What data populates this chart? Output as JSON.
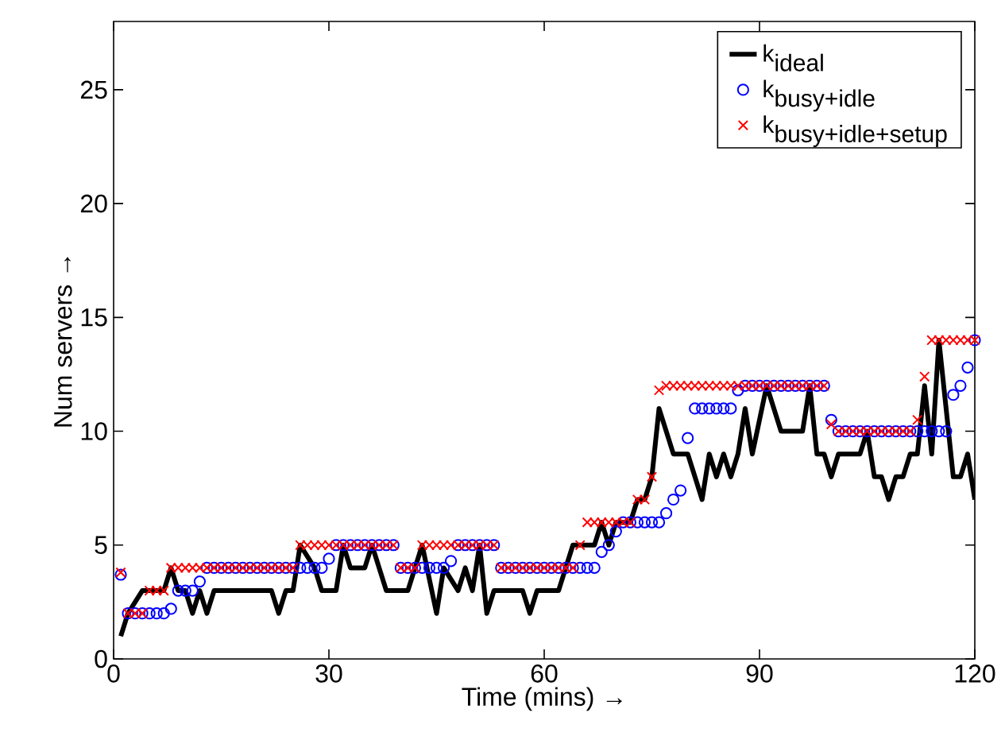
{
  "chart_data": {
    "type": "line",
    "xlabel": "Time (mins) →",
    "ylabel": "Num servers →",
    "xlim": [
      0,
      120
    ],
    "ylim": [
      0,
      28
    ],
    "xticks": [
      0,
      30,
      60,
      90,
      120
    ],
    "yticks": [
      0,
      5,
      10,
      15,
      20,
      25
    ],
    "legend": "top right",
    "grid": false,
    "x": [
      1,
      2,
      3,
      4,
      5,
      6,
      7,
      8,
      9,
      10,
      11,
      12,
      13,
      14,
      15,
      16,
      17,
      18,
      19,
      20,
      21,
      22,
      23,
      24,
      25,
      26,
      27,
      28,
      29,
      30,
      31,
      32,
      33,
      34,
      35,
      36,
      37,
      38,
      39,
      40,
      41,
      42,
      43,
      44,
      45,
      46,
      47,
      48,
      49,
      50,
      51,
      52,
      53,
      54,
      55,
      56,
      57,
      58,
      59,
      60,
      61,
      62,
      63,
      64,
      65,
      66,
      67,
      68,
      69,
      70,
      71,
      72,
      73,
      74,
      75,
      76,
      77,
      78,
      79,
      80,
      81,
      82,
      83,
      84,
      85,
      86,
      87,
      88,
      89,
      90,
      91,
      92,
      93,
      94,
      95,
      96,
      97,
      98,
      99,
      100,
      101,
      102,
      103,
      104,
      105,
      106,
      107,
      108,
      109,
      110,
      111,
      112,
      113,
      114,
      115,
      116,
      117,
      118,
      119,
      120
    ],
    "series": [
      {
        "name": "\\textnormal{k}_{\\textnormal{ideal}}",
        "color": "#000000",
        "x": [
          1,
          2,
          4,
          7,
          8,
          9,
          10,
          11,
          12,
          13,
          14,
          22,
          23,
          24,
          25,
          26,
          28,
          29,
          31,
          32,
          33,
          35,
          36,
          38,
          41,
          43,
          45,
          46,
          48,
          49,
          50,
          51,
          52,
          53,
          57,
          58,
          59,
          62,
          63,
          64,
          67,
          68,
          69,
          70,
          72,
          73,
          74,
          75,
          76,
          78,
          80,
          82,
          83,
          84,
          85,
          86,
          87,
          88,
          89,
          91,
          93,
          96,
          97,
          98,
          99,
          100,
          101,
          104,
          105,
          106,
          107,
          108,
          109,
          110,
          111,
          112,
          113,
          114,
          115,
          117,
          118,
          119,
          120
        ],
        "values": [
          1,
          2,
          3,
          3,
          4,
          3,
          3,
          2,
          3,
          2,
          3,
          3,
          2,
          3,
          3,
          5,
          4,
          3,
          3,
          5,
          4,
          4,
          5,
          3,
          3,
          5,
          2,
          4,
          3,
          4,
          3,
          5,
          2,
          3,
          3,
          2,
          3,
          3,
          4,
          5,
          5,
          6,
          5,
          6,
          6,
          7,
          7,
          8,
          11,
          9,
          9,
          7,
          9,
          8,
          9,
          8,
          9,
          11,
          9,
          12,
          10,
          10,
          12,
          9,
          9,
          8,
          9,
          9,
          10,
          8,
          8,
          7,
          8,
          8,
          9,
          9,
          12,
          9,
          14,
          8,
          8,
          9,
          7
        ]
      },
      {
        "name": "\\textnormal{k}_{\\textnormal{busy+idle}}",
        "type": "scatter",
        "marker": "circle",
        "color": "#0000ff",
        "values": [
          3.7,
          2,
          2,
          2,
          2,
          2,
          2,
          2.2,
          3,
          3,
          3,
          3.4,
          4,
          4,
          4,
          4,
          4,
          4,
          4,
          4,
          4,
          4,
          4,
          4,
          4,
          4,
          4,
          4,
          4,
          4.4,
          5,
          5,
          5,
          5,
          5,
          5,
          5,
          5,
          5,
          4,
          4,
          4,
          4,
          4,
          4,
          4,
          4.3,
          5,
          5,
          5,
          5,
          5,
          5,
          4,
          4,
          4,
          4,
          4,
          4,
          4,
          4,
          4,
          4,
          4,
          4,
          4,
          4,
          4.7,
          5,
          5.6,
          6,
          6,
          6,
          6,
          6,
          6,
          6.4,
          7,
          7.4,
          9.7,
          11,
          11,
          11,
          11,
          11,
          11,
          11.8,
          12,
          12,
          12,
          12,
          12,
          12,
          12,
          12,
          12,
          12,
          12,
          12,
          10.5,
          10,
          10,
          10,
          10,
          10,
          10,
          10,
          10,
          10,
          10,
          10,
          10,
          10,
          10,
          10,
          10,
          11.6,
          12,
          12.8,
          14
        ]
      },
      {
        "name": "\\textnormal{k}_{\\textnormal{busy+idle+setup}}",
        "type": "scatter",
        "marker": "cross",
        "color": "#ff0000",
        "values": [
          3.8,
          2,
          2,
          2,
          3,
          3,
          3,
          4,
          4,
          4,
          4,
          4,
          4,
          4,
          4,
          4,
          4,
          4,
          4,
          4,
          4,
          4,
          4,
          4,
          4,
          5,
          5,
          5,
          5,
          5,
          5,
          5,
          5,
          5,
          5,
          5,
          5,
          5,
          5,
          4,
          4,
          4,
          5,
          5,
          5,
          5,
          5,
          5,
          5,
          5,
          5,
          5,
          5,
          4,
          4,
          4,
          4,
          4,
          4,
          4,
          4,
          4,
          4,
          4,
          5,
          6,
          6,
          6,
          6,
          6,
          6,
          6,
          7,
          7,
          8,
          11.8,
          12,
          12,
          12,
          12,
          12,
          12,
          12,
          12,
          12,
          12,
          12,
          12,
          12,
          12,
          12,
          12,
          12,
          12,
          12,
          12,
          12,
          12,
          12,
          10.3,
          10,
          10,
          10,
          10,
          10,
          10,
          10,
          10,
          10,
          10,
          10,
          10.5,
          12.4,
          14,
          14,
          14,
          14,
          14,
          14,
          14
        ]
      }
    ]
  }
}
